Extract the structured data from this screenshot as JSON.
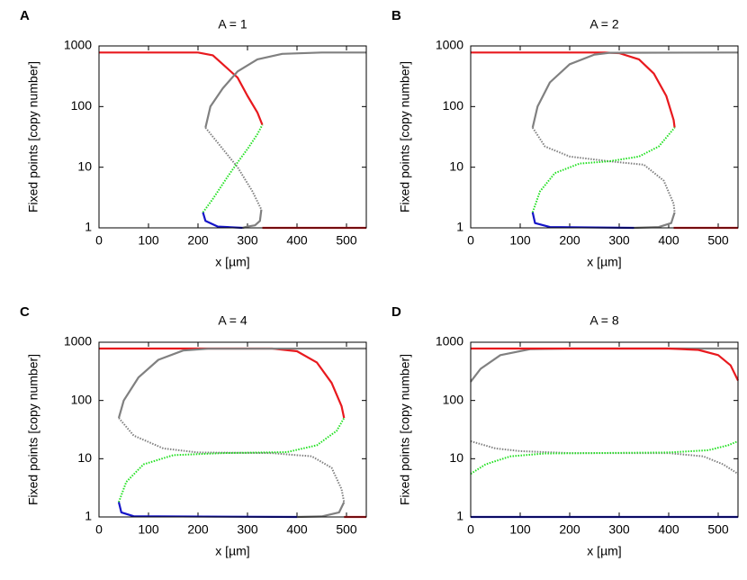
{
  "chart_data": [
    {
      "type": "line",
      "panel_label": "A",
      "title": "A = 1",
      "xlabel": "x [µm]",
      "ylabel": "Fixed points [copy number]",
      "xlim": [
        0,
        540
      ],
      "ylim": [
        1,
        1000
      ],
      "xticks": [
        0,
        100,
        200,
        300,
        400,
        500
      ],
      "yticks": [
        1,
        10,
        100,
        1000
      ],
      "log_y": true,
      "series": [
        {
          "color": "#e8191e",
          "style": "solid",
          "x": [
            0,
            200,
            230,
            250,
            280,
            300,
            320,
            330,
            null,
            330,
            540
          ],
          "values": [
            780,
            780,
            700,
            500,
            300,
            150,
            80,
            50,
            null,
            1,
            1
          ]
        },
        {
          "color": "#808080",
          "style": "solid",
          "x": [
            215,
            225,
            250,
            280,
            320,
            370,
            450,
            540
          ],
          "values": [
            45,
            100,
            200,
            380,
            600,
            740,
            780,
            780
          ]
        },
        {
          "color": "#808080",
          "style": "dotted",
          "x": [
            215,
            250,
            280,
            310,
            328
          ],
          "values": [
            45,
            20,
            10,
            4,
            2
          ]
        },
        {
          "color": "#808080",
          "style": "solid",
          "x": [
            328,
            325,
            315,
            300,
            290
          ],
          "values": [
            2,
            1.3,
            1.1,
            1.05,
            1
          ]
        },
        {
          "color": "#22e022",
          "style": "dotted",
          "x": [
            210,
            230,
            260,
            280,
            300,
            320,
            330
          ],
          "values": [
            1.8,
            3,
            7,
            12,
            20,
            35,
            50
          ]
        },
        {
          "color": "#1515c8",
          "style": "solid",
          "x": [
            210,
            215,
            240,
            290
          ],
          "values": [
            1.8,
            1.3,
            1.05,
            1
          ]
        }
      ]
    },
    {
      "type": "line",
      "panel_label": "B",
      "title": "A = 2",
      "xlabel": "x [µm]",
      "ylabel": "Fixed points [copy number]",
      "xlim": [
        0,
        540
      ],
      "ylim": [
        1,
        1000
      ],
      "xticks": [
        0,
        100,
        200,
        300,
        400,
        500
      ],
      "yticks": [
        1,
        10,
        100,
        1000
      ],
      "log_y": true,
      "series": [
        {
          "color": "#e8191e",
          "style": "solid",
          "x": [
            0,
            270,
            300,
            340,
            370,
            395,
            410,
            412,
            null,
            410,
            540
          ],
          "values": [
            780,
            780,
            760,
            600,
            350,
            150,
            60,
            45,
            null,
            1,
            1
          ]
        },
        {
          "color": "#808080",
          "style": "solid",
          "x": [
            125,
            135,
            160,
            200,
            250,
            280,
            540
          ],
          "values": [
            45,
            100,
            250,
            500,
            720,
            770,
            780
          ]
        },
        {
          "color": "#808080",
          "style": "dotted",
          "x": [
            125,
            150,
            200,
            280,
            350,
            390,
            410,
            412
          ],
          "values": [
            45,
            22,
            15,
            12.5,
            11,
            6,
            2.5,
            1.8
          ]
        },
        {
          "color": "#808080",
          "style": "solid",
          "x": [
            412,
            405,
            380,
            330
          ],
          "values": [
            1.8,
            1.2,
            1.03,
            1
          ]
        },
        {
          "color": "#22e022",
          "style": "dotted",
          "x": [
            125,
            140,
            170,
            220,
            280,
            340,
            380,
            412
          ],
          "values": [
            1.8,
            4,
            8,
            11.5,
            12.5,
            15,
            22,
            45
          ]
        },
        {
          "color": "#1515c8",
          "style": "solid",
          "x": [
            125,
            130,
            160,
            330
          ],
          "values": [
            1.8,
            1.2,
            1.03,
            1
          ]
        }
      ]
    },
    {
      "type": "line",
      "panel_label": "C",
      "title": "A = 4",
      "xlabel": "x [µm]",
      "ylabel": "Fixed points [copy number]",
      "xlim": [
        0,
        540
      ],
      "ylim": [
        1,
        1000
      ],
      "xticks": [
        0,
        100,
        200,
        300,
        400,
        500
      ],
      "yticks": [
        1,
        10,
        100,
        1000
      ],
      "log_y": true,
      "series": [
        {
          "color": "#e8191e",
          "style": "solid",
          "x": [
            0,
            350,
            400,
            440,
            470,
            490,
            495,
            null,
            495,
            540
          ],
          "values": [
            780,
            780,
            700,
            450,
            200,
            80,
            50,
            null,
            1,
            1
          ]
        },
        {
          "color": "#808080",
          "style": "solid",
          "x": [
            40,
            50,
            80,
            120,
            170,
            220,
            540
          ],
          "values": [
            50,
            100,
            250,
            500,
            720,
            775,
            780
          ]
        },
        {
          "color": "#808080",
          "style": "dotted",
          "x": [
            40,
            70,
            130,
            200,
            350,
            430,
            470,
            490,
            495
          ],
          "values": [
            50,
            25,
            15,
            12.8,
            12.5,
            11,
            7,
            3,
            1.8
          ]
        },
        {
          "color": "#808080",
          "style": "solid",
          "x": [
            495,
            485,
            450,
            400
          ],
          "values": [
            1.8,
            1.2,
            1.02,
            1
          ]
        },
        {
          "color": "#22e022",
          "style": "dotted",
          "x": [
            40,
            55,
            90,
            150,
            250,
            380,
            440,
            480,
            495
          ],
          "values": [
            1.8,
            4,
            8,
            11.5,
            12.5,
            13,
            17,
            30,
            50
          ]
        },
        {
          "color": "#1515c8",
          "style": "solid",
          "x": [
            40,
            45,
            70,
            400
          ],
          "values": [
            1.8,
            1.2,
            1.03,
            1
          ]
        }
      ]
    },
    {
      "type": "line",
      "panel_label": "D",
      "title": "A = 8",
      "xlabel": "x [µm]",
      "ylabel": "Fixed points [copy number]",
      "xlim": [
        0,
        540
      ],
      "ylim": [
        1,
        1000
      ],
      "xticks": [
        0,
        100,
        200,
        300,
        400,
        500
      ],
      "yticks": [
        1,
        10,
        100,
        1000
      ],
      "log_y": true,
      "series": [
        {
          "color": "#808080",
          "style": "solid",
          "x": [
            0,
            20,
            60,
            120,
            200,
            540
          ],
          "values": [
            210,
            350,
            600,
            760,
            780,
            780
          ]
        },
        {
          "color": "#e8191e",
          "style": "solid",
          "x": [
            0,
            400,
            460,
            500,
            525,
            540
          ],
          "values": [
            780,
            780,
            740,
            600,
            400,
            220
          ]
        },
        {
          "color": "#808080",
          "style": "dotted",
          "x": [
            0,
            50,
            100,
            200,
            400,
            470,
            510,
            540
          ],
          "values": [
            20,
            15,
            13.5,
            12.5,
            12.5,
            11,
            8,
            5.5
          ]
        },
        {
          "color": "#22e022",
          "style": "dotted",
          "x": [
            0,
            30,
            80,
            150,
            400,
            480,
            520,
            540
          ],
          "values": [
            5.5,
            8,
            11,
            12.3,
            12.8,
            14,
            17,
            20
          ]
        },
        {
          "color": "#1515c8",
          "style": "solid",
          "x": [
            0,
            540
          ],
          "values": [
            1,
            1
          ]
        }
      ]
    }
  ]
}
